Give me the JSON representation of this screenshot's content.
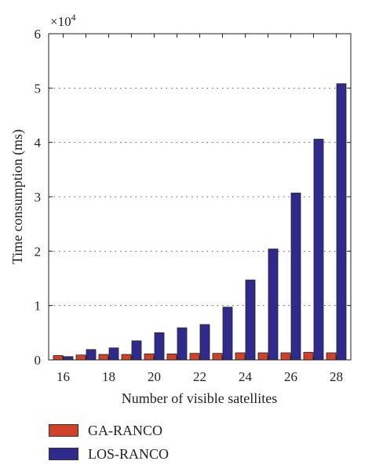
{
  "chart_data": {
    "type": "bar",
    "categories": [
      "16",
      "17",
      "18",
      "19",
      "20",
      "21",
      "22",
      "23",
      "24",
      "25",
      "26",
      "27",
      "28"
    ],
    "x_tick_labels": [
      "16",
      "18",
      "20",
      "22",
      "24",
      "26",
      "28"
    ],
    "xlabel": "Number of visible satellites",
    "ylabel": "Time consumption (ms)",
    "y_multiplier": "×10",
    "y_multiplier_exp": "4",
    "ylim": [
      0,
      6
    ],
    "y_ticks": [
      "0",
      "1",
      "2",
      "3",
      "4",
      "5",
      "6"
    ],
    "grid": "horizontal dotted",
    "legend_position": "bottom-left",
    "series": [
      {
        "name": "GA-RANCO",
        "color": "#d0412a",
        "values": [
          0.08,
          0.09,
          0.1,
          0.1,
          0.11,
          0.11,
          0.12,
          0.12,
          0.13,
          0.13,
          0.13,
          0.14,
          0.13
        ]
      },
      {
        "name": "LOS-RANCO",
        "color": "#2f2a8c",
        "values": [
          0.06,
          0.19,
          0.22,
          0.35,
          0.5,
          0.59,
          0.65,
          0.97,
          1.47,
          2.04,
          3.07,
          4.06,
          5.08
        ]
      }
    ]
  }
}
